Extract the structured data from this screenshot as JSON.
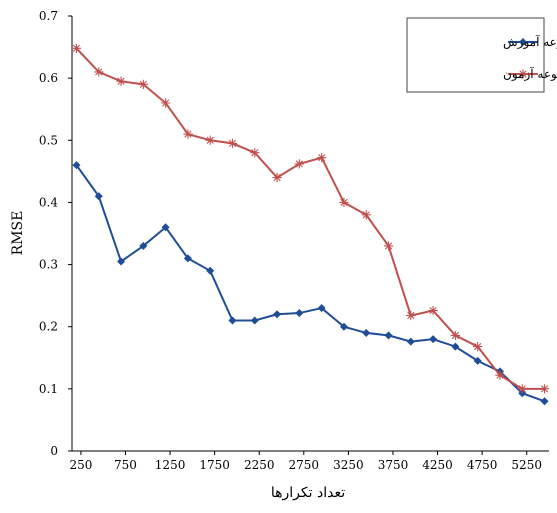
{
  "chart_data": {
    "type": "line",
    "ylabel": "RMSE",
    "xlabel": "تعداد تکرارها",
    "xlim": [
      150,
      5500
    ],
    "ylim": [
      0,
      0.7
    ],
    "x_ticks": [
      250,
      750,
      1250,
      1750,
      2250,
      2750,
      3250,
      3750,
      4250,
      4750,
      5250
    ],
    "y_ticks": [
      0,
      0.1,
      0.2,
      0.3,
      0.4,
      0.5,
      0.6,
      0.7
    ],
    "y_tick_labels": [
      "0",
      "0.1",
      "0.2",
      "0.3",
      "0.4",
      "0.5",
      "0.6",
      "0.7"
    ],
    "grid": false,
    "legend_position": "top-right",
    "x": [
      200,
      450,
      700,
      950,
      1200,
      1450,
      1700,
      1950,
      2200,
      2450,
      2700,
      2950,
      3200,
      3450,
      3700,
      3950,
      4200,
      4450,
      4700,
      4950,
      5200,
      5450
    ],
    "series": [
      {
        "name": "مجموعه آموزش",
        "color": "#1f4e96",
        "marker": "diamond",
        "values": [
          0.46,
          0.41,
          0.305,
          0.33,
          0.36,
          0.31,
          0.29,
          0.21,
          0.21,
          0.22,
          0.222,
          0.23,
          0.2,
          0.19,
          0.186,
          0.176,
          0.18,
          0.168,
          0.145,
          0.128,
          0.093,
          0.08
        ]
      },
      {
        "name": "مجموعه آزمون",
        "color": "#c0504d",
        "marker": "star",
        "values": [
          0.648,
          0.61,
          0.595,
          0.59,
          0.56,
          0.51,
          0.5,
          0.495,
          0.48,
          0.44,
          0.462,
          0.472,
          0.4,
          0.38,
          0.33,
          0.218,
          0.226,
          0.186,
          0.168,
          0.122,
          0.1,
          0.1
        ]
      }
    ]
  }
}
